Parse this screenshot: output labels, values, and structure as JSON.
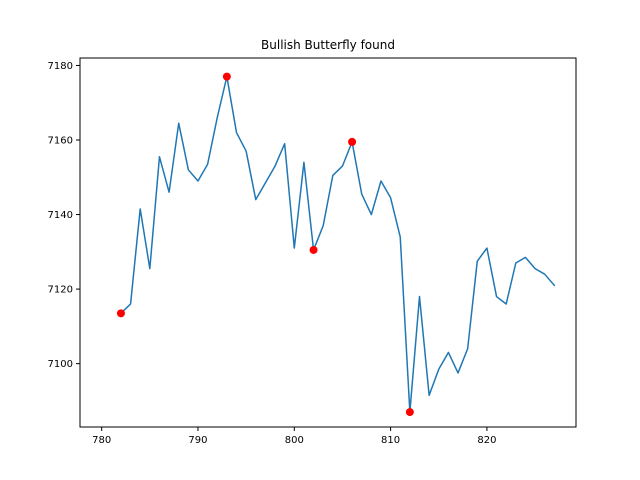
{
  "chart_data": {
    "type": "line",
    "title": "Bullish Butterfly found",
    "xlabel": "",
    "ylabel": "",
    "xlim": [
      777.75,
      829.25
    ],
    "ylim": [
      7083.0,
      7182.0
    ],
    "xticks": [
      780,
      790,
      800,
      810,
      820
    ],
    "yticks": [
      7100,
      7120,
      7140,
      7160,
      7180
    ],
    "grid": false,
    "series": [
      {
        "color": "#1f77b4",
        "x": [
          782,
          783,
          784,
          785,
          786,
          787,
          788,
          789,
          790,
          791,
          792,
          793,
          794,
          795,
          796,
          797,
          798,
          799,
          800,
          801,
          802,
          803,
          804,
          805,
          806,
          807,
          808,
          809,
          810,
          811,
          812,
          813,
          814,
          815,
          816,
          817,
          818,
          819,
          820,
          821,
          822,
          823,
          824,
          825,
          826,
          827
        ],
        "y": [
          7113.5,
          7116.0,
          7141.5,
          7125.5,
          7155.5,
          7146.0,
          7164.5,
          7152.0,
          7149.0,
          7153.5,
          7166.0,
          7177.0,
          7162.0,
          7157.0,
          7144.0,
          7148.5,
          7153.0,
          7159.0,
          7131.0,
          7154.0,
          7130.5,
          7137.0,
          7150.5,
          7153.0,
          7159.5,
          7145.5,
          7140.0,
          7149.0,
          7144.5,
          7134.0,
          7087.0,
          7118.0,
          7091.5,
          7098.5,
          7103.0,
          7097.5,
          7104.0,
          7127.5,
          7131.0,
          7118.0,
          7116.0,
          7127.0,
          7128.5,
          7125.5,
          7124.0,
          7121.0
        ]
      }
    ],
    "markers": {
      "color": "#ff0000",
      "x": [
        782,
        793,
        802,
        806,
        812
      ],
      "y": [
        7113.5,
        7177.0,
        7130.5,
        7159.5,
        7087.0
      ]
    }
  }
}
